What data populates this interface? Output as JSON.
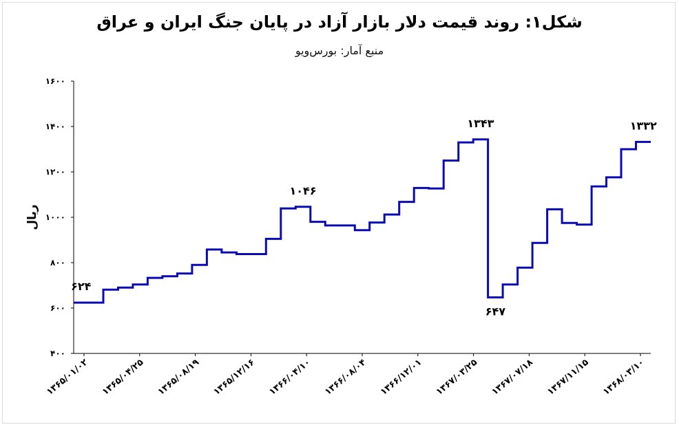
{
  "title": "شکل۱: روند قیمت دلار بازار آزاد در پایان جنگ ایران و عراق",
  "subtitle": "منبع آمار: بورس‌ویو",
  "chart_data": {
    "type": "line",
    "ylabel": "ریال",
    "ylim": [
      400,
      1600
    ],
    "yticks": [
      400,
      600,
      800,
      1000,
      1200,
      1400,
      1600
    ],
    "ytick_labels": [
      "۴۰۰",
      "۶۰۰",
      "۸۰۰",
      "۱۰۰۰",
      "۱۲۰۰",
      "۱۴۰۰",
      "۱۶۰۰"
    ],
    "xtick_labels": [
      "۱۳۶۵/۰۱/۰۲",
      "۱۳۶۵/۰۴/۲۵",
      "۱۳۶۵/۰۸/۱۹",
      "۱۳۶۵/۱۲/۱۶",
      "۱۳۶۶/۰۴/۱۰",
      "۱۳۶۶/۰۸/۰۴",
      "۱۳۶۶/۱۲/۰۱",
      "۱۳۶۷/۰۳/۲۵",
      "۱۳۶۷/۰۷/۱۸",
      "۱۳۶۷/۱۱/۱۵",
      "۱۳۶۸/۰۳/۱۰"
    ],
    "step": true,
    "color": "#0a0ab4",
    "series": [
      {
        "values": [
          624,
          624,
          681,
          690,
          704,
          733,
          740,
          752,
          790,
          858,
          845,
          838,
          838,
          905,
          1039,
          1046,
          980,
          964,
          964,
          943,
          977,
          1012,
          1068,
          1129,
          1127,
          1250,
          1330,
          1343,
          647,
          704,
          778,
          887,
          1035,
          975,
          968,
          1136,
          1176,
          1300,
          1332
        ]
      }
    ],
    "annotations": [
      {
        "index": 0,
        "text": "۶۲۴",
        "position": "above"
      },
      {
        "index": 15,
        "text": "۱۰۴۶",
        "position": "above"
      },
      {
        "index": 27,
        "text": "۱۳۴۳",
        "position": "above"
      },
      {
        "index": 28,
        "text": "۶۴۷",
        "position": "below"
      },
      {
        "index": 38,
        "text": "۱۳۳۲",
        "position": "above"
      }
    ]
  }
}
